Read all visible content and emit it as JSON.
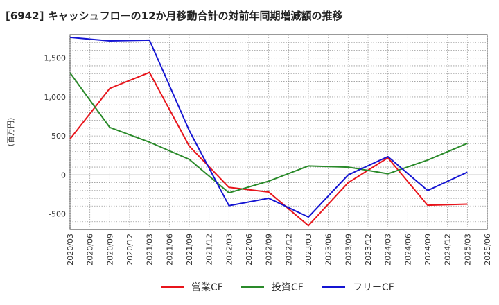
{
  "title": "[6942]  キャッシュフローの12か月移動合計の対前年同期増減額の推移",
  "chart_data": {
    "type": "line",
    "title": "[6942]  キャッシュフローの12か月移動合計の対前年同期増減額の推移",
    "ylabel": "(百万円)",
    "xlabel": "",
    "ylim": [
      -700,
      1800
    ],
    "yticks": [
      -500,
      0,
      500,
      1000,
      1500
    ],
    "ytick_labels": [
      "-500",
      "0",
      "500",
      "1,000",
      "1,500"
    ],
    "categories": [
      "2020/03",
      "2020/06",
      "2020/09",
      "2020/12",
      "2021/03",
      "2021/06",
      "2021/09",
      "2021/12",
      "2022/03",
      "2022/06",
      "2022/09",
      "2022/12",
      "2023/03",
      "2023/06",
      "2023/09",
      "2023/12",
      "2024/03",
      "2024/06",
      "2024/09",
      "2024/12",
      "2025/03",
      "2025/06"
    ],
    "series": [
      {
        "name": "営業CF",
        "color": "#e8141b",
        "values": [
          460,
          null,
          1110,
          null,
          1315,
          null,
          370,
          null,
          -160,
          null,
          -220,
          null,
          -650,
          null,
          -100,
          null,
          220,
          null,
          -390,
          null,
          -375,
          null
        ]
      },
      {
        "name": "投資CF",
        "color": "#2a8a2a",
        "values": [
          1310,
          null,
          610,
          null,
          420,
          null,
          200,
          null,
          -230,
          null,
          -80,
          null,
          115,
          null,
          100,
          null,
          15,
          null,
          190,
          null,
          405,
          null
        ]
      },
      {
        "name": "フリーCF",
        "color": "#1414d2",
        "values": [
          1765,
          null,
          1720,
          null,
          1730,
          null,
          570,
          null,
          -395,
          null,
          -300,
          null,
          -540,
          null,
          0,
          null,
          235,
          null,
          -200,
          null,
          35,
          null
        ]
      }
    ]
  }
}
